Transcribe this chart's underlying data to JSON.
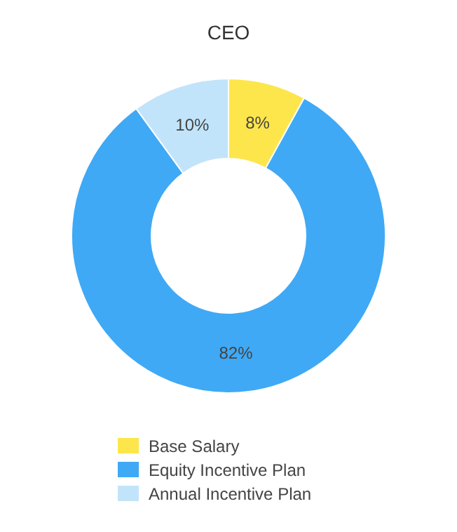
{
  "chart_data": {
    "type": "donut",
    "title": "CEO",
    "categories": [
      "Base Salary",
      "Equity Incentive Plan",
      "Annual Incentive Plan"
    ],
    "values": [
      8,
      82,
      10
    ],
    "value_labels": [
      "8%",
      "82%",
      "10%"
    ],
    "colors": [
      "#fde64b",
      "#3fa9f5",
      "#c2e4fb"
    ],
    "legend": "bottom"
  }
}
